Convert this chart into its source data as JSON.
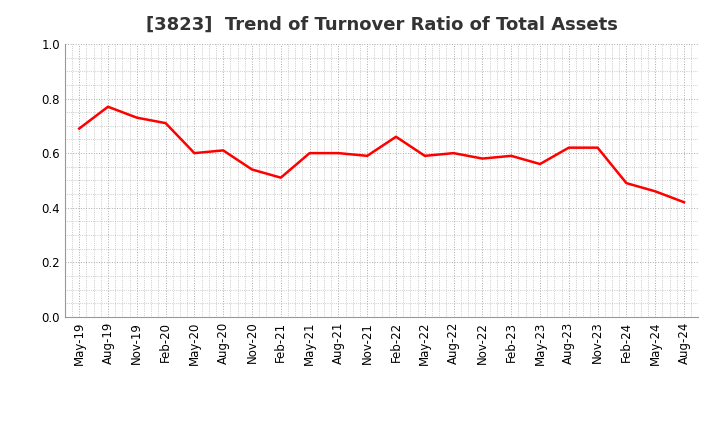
{
  "title": "[3823]  Trend of Turnover Ratio of Total Assets",
  "x_labels": [
    "May-19",
    "Aug-19",
    "Nov-19",
    "Feb-20",
    "May-20",
    "Aug-20",
    "Nov-20",
    "Feb-21",
    "May-21",
    "Aug-21",
    "Nov-21",
    "Feb-22",
    "May-22",
    "Aug-22",
    "Nov-22",
    "Feb-23",
    "May-23",
    "Aug-23",
    "Nov-23",
    "Feb-24",
    "May-24",
    "Aug-24"
  ],
  "y_values": [
    0.69,
    0.77,
    0.73,
    0.71,
    0.6,
    0.61,
    0.54,
    0.51,
    0.6,
    0.6,
    0.59,
    0.66,
    0.59,
    0.6,
    0.58,
    0.59,
    0.56,
    0.62,
    0.62,
    0.49,
    0.46,
    0.42
  ],
  "line_color": "#FF0000",
  "line_width": 1.8,
  "ylim": [
    0.0,
    1.0
  ],
  "yticks": [
    0.0,
    0.2,
    0.4,
    0.6,
    0.8,
    1.0
  ],
  "grid_color": "#aaaaaa",
  "background_color": "#ffffff",
  "title_fontsize": 13,
  "tick_fontsize": 8.5
}
